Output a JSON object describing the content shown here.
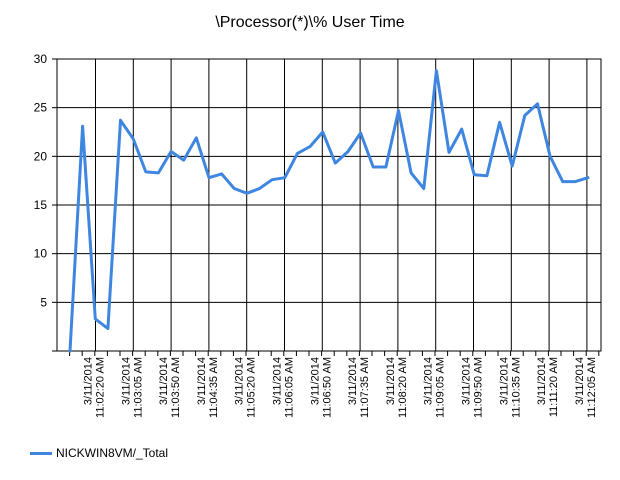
{
  "chart_data": {
    "type": "line",
    "title": "\\Processor(*)\\% User Time",
    "xlabel": "",
    "ylabel": "",
    "ylim": [
      0,
      30
    ],
    "y_ticks": [
      "5",
      "10",
      "15",
      "20",
      "25",
      "30"
    ],
    "x_tick_labels": [
      [
        "3/11/2014",
        "11:02:20 AM"
      ],
      [
        "3/11/2014",
        "11:03:05 AM"
      ],
      [
        "3/11/2014",
        "11:03:50 AM"
      ],
      [
        "3/11/2014",
        "11:04:35 AM"
      ],
      [
        "3/11/2014",
        "11:05:20 AM"
      ],
      [
        "3/11/2014",
        "11:06:05 AM"
      ],
      [
        "3/11/2014",
        "11:06:50 AM"
      ],
      [
        "3/11/2014",
        "11:07:35 AM"
      ],
      [
        "3/11/2014",
        "11:08:20 AM"
      ],
      [
        "3/11/2014",
        "11:09:05 AM"
      ],
      [
        "3/11/2014",
        "11:09:50 AM"
      ],
      [
        "3/11/2014",
        "11:10:35 AM"
      ],
      [
        "3/11/2014",
        "11:11:20 AM"
      ],
      [
        "3/11/2014",
        "11:12:05 AM"
      ]
    ],
    "grid": true,
    "legend_position": "bottom-left",
    "series": [
      {
        "name": "NICKWIN8VM/_Total",
        "color": "#3f86e0",
        "values": [
          0.0,
          23.1,
          3.3,
          2.3,
          23.7,
          21.8,
          18.4,
          18.3,
          20.5,
          19.6,
          21.9,
          17.8,
          18.2,
          16.7,
          16.2,
          16.7,
          17.6,
          17.8,
          20.3,
          21.0,
          22.5,
          19.3,
          20.5,
          22.4,
          18.9,
          18.9,
          24.7,
          18.3,
          16.7,
          28.8,
          20.4,
          22.8,
          18.1,
          18.0,
          23.5,
          19.0,
          24.2,
          25.4,
          20.0,
          17.4,
          17.4,
          17.8
        ]
      }
    ]
  },
  "legend": {
    "label": "NICKWIN8VM/_Total",
    "color": "#3f86e0"
  }
}
